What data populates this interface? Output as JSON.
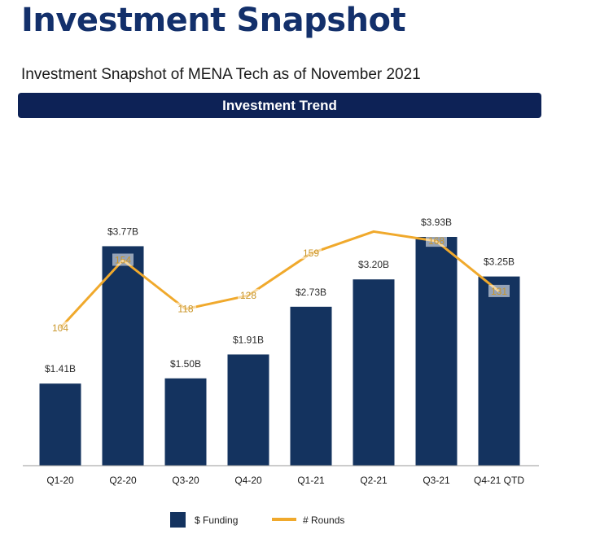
{
  "header": {
    "title": "Investment Snapshot",
    "subtitle": "Investment Snapshot of MENA Tech as of November 2021",
    "banner": "Investment Trend"
  },
  "colors": {
    "bar": "#14335f",
    "line": "#f0a92c",
    "banner": "#0d2256",
    "title": "#13306b"
  },
  "chart_data": {
    "type": "bar+line",
    "categories": [
      "Q1-20",
      "Q2-20",
      "Q3-20",
      "Q4-20",
      "Q1-21",
      "Q2-21",
      "Q3-21",
      "Q4-21 QTD"
    ],
    "series": [
      {
        "name": "$ Funding",
        "type": "bar",
        "values": [
          1.41,
          3.77,
          1.5,
          1.91,
          2.73,
          3.2,
          3.93,
          3.25
        ],
        "labels": [
          "$1.41B",
          "$3.77B",
          "$1.50B",
          "$1.91B",
          "$2.73B",
          "$3.20B",
          "$3.93B",
          "$3.25B"
        ]
      },
      {
        "name": "# Rounds",
        "type": "line",
        "values": [
          104,
          154,
          118,
          128,
          159,
          175,
          168,
          131
        ],
        "labels": [
          "104",
          "154",
          "118",
          "128",
          "159",
          "",
          "168",
          "131"
        ]
      }
    ],
    "legend_position": "bottom",
    "grid": false
  }
}
